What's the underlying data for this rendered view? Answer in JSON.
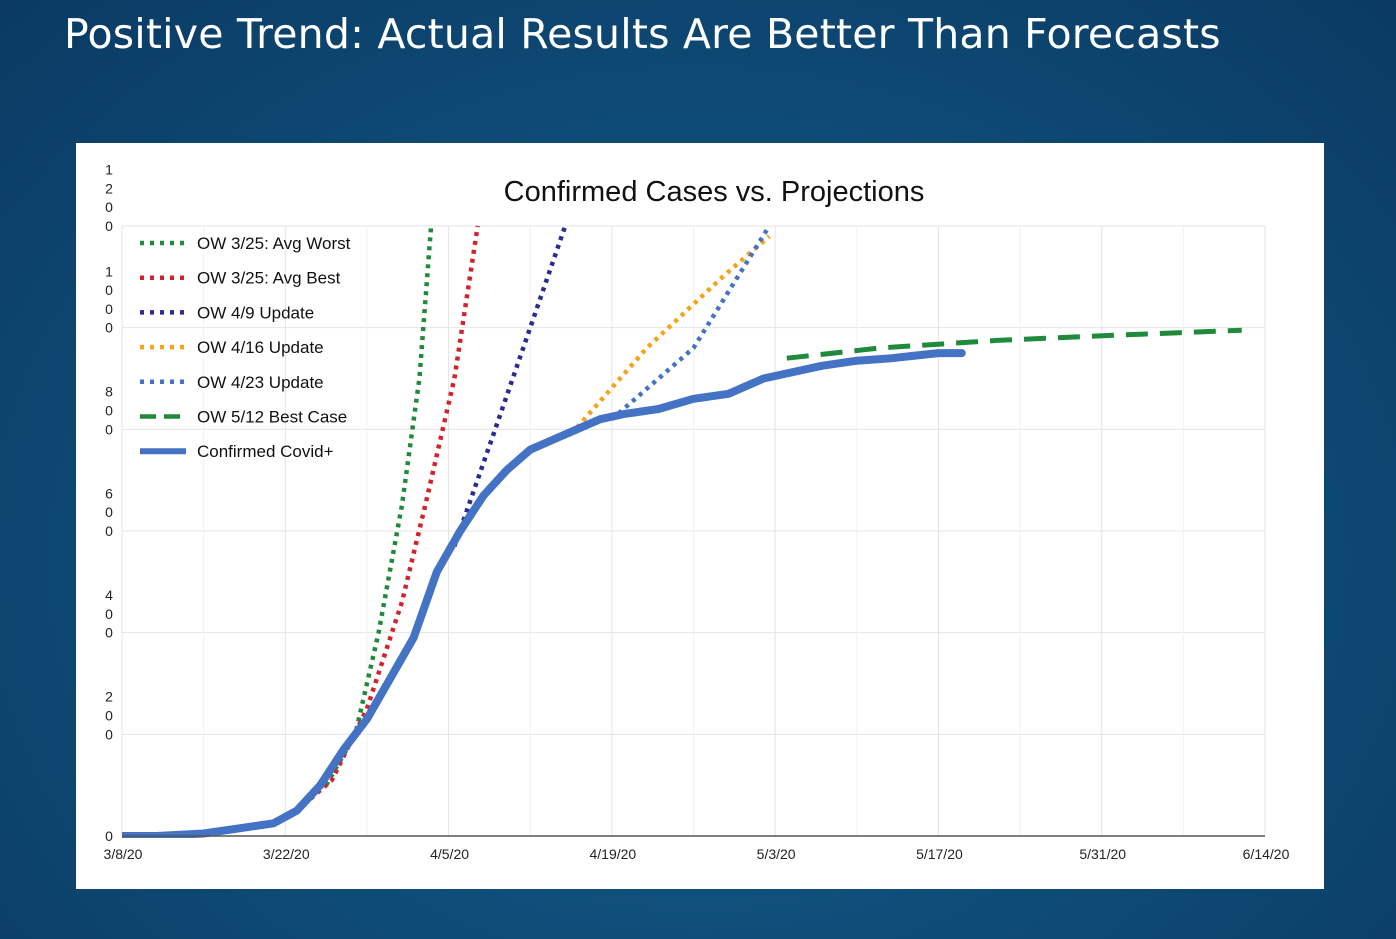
{
  "slide": {
    "title": "Positive Trend: Actual Results Are Better Than Forecasts",
    "background": "#0f4f7a"
  },
  "chart_data": {
    "type": "line",
    "title": "Confirmed Cases vs. Projections",
    "xlabel": "",
    "ylabel": "",
    "x_ticks": [
      "3/8/20",
      "3/22/20",
      "4/5/20",
      "4/19/20",
      "5/3/20",
      "5/17/20",
      "5/31/20",
      "6/14/20"
    ],
    "xlim_days": [
      0,
      98
    ],
    "ylim": [
      0,
      1200
    ],
    "y_ticks": [
      0,
      200,
      400,
      600,
      800,
      1000,
      1200
    ],
    "grid": true,
    "legend_position": "top-left",
    "series": [
      {
        "name": "OW 3/25: Avg Worst",
        "style": "dotted",
        "color": "#1f8a3b",
        "points": [
          [
            17.5,
            100
          ],
          [
            20,
            200
          ],
          [
            22,
            400
          ],
          [
            24,
            650
          ],
          [
            25.5,
            900
          ],
          [
            26.5,
            1200
          ]
        ]
      },
      {
        "name": "OW 3/25: Avg Best",
        "style": "dotted",
        "color": "#d2232a",
        "points": [
          [
            15,
            50
          ],
          [
            18,
            110
          ],
          [
            21,
            250
          ],
          [
            24,
            460
          ],
          [
            26,
            650
          ],
          [
            28.5,
            900
          ],
          [
            30.5,
            1200
          ]
        ]
      },
      {
        "name": "OW 4/9 Update",
        "style": "dotted",
        "color": "#2b2a8f",
        "points": [
          [
            28.5,
            570
          ],
          [
            32,
            800
          ],
          [
            35,
            1000
          ],
          [
            38,
            1200
          ]
        ]
      },
      {
        "name": "OW 4/16 Update",
        "style": "dotted",
        "color": "#f5a31a",
        "points": [
          [
            38.5,
            790
          ],
          [
            45,
            960
          ],
          [
            51.5,
            1100
          ],
          [
            55.5,
            1180
          ]
        ]
      },
      {
        "name": "OW 4/23 Update",
        "style": "dotted",
        "color": "#4472c4",
        "points": [
          [
            42,
            820
          ],
          [
            49,
            960
          ],
          [
            55.5,
            1200
          ]
        ]
      },
      {
        "name": "OW 5/12 Best Case",
        "style": "dashed",
        "color": "#1f8a3b",
        "points": [
          [
            57,
            940
          ],
          [
            65,
            960
          ],
          [
            75,
            975
          ],
          [
            85,
            985
          ],
          [
            96,
            995
          ]
        ]
      },
      {
        "name": "Confirmed Covid+",
        "style": "solid",
        "color": "#4472c4",
        "points": [
          [
            0,
            0
          ],
          [
            3,
            0
          ],
          [
            7,
            5
          ],
          [
            10,
            15
          ],
          [
            13,
            25
          ],
          [
            15,
            50
          ],
          [
            17,
            100
          ],
          [
            19,
            170
          ],
          [
            21,
            230
          ],
          [
            23,
            310
          ],
          [
            25,
            390
          ],
          [
            27,
            520
          ],
          [
            29,
            600
          ],
          [
            31,
            670
          ],
          [
            33,
            720
          ],
          [
            35,
            760
          ],
          [
            37,
            780
          ],
          [
            39,
            800
          ],
          [
            41,
            820
          ],
          [
            43,
            830
          ],
          [
            46,
            840
          ],
          [
            49,
            860
          ],
          [
            52,
            870
          ],
          [
            55,
            900
          ],
          [
            58,
            915
          ],
          [
            60,
            925
          ],
          [
            63,
            935
          ],
          [
            66,
            940
          ],
          [
            68,
            945
          ],
          [
            70,
            950
          ],
          [
            72,
            950
          ]
        ]
      }
    ]
  }
}
